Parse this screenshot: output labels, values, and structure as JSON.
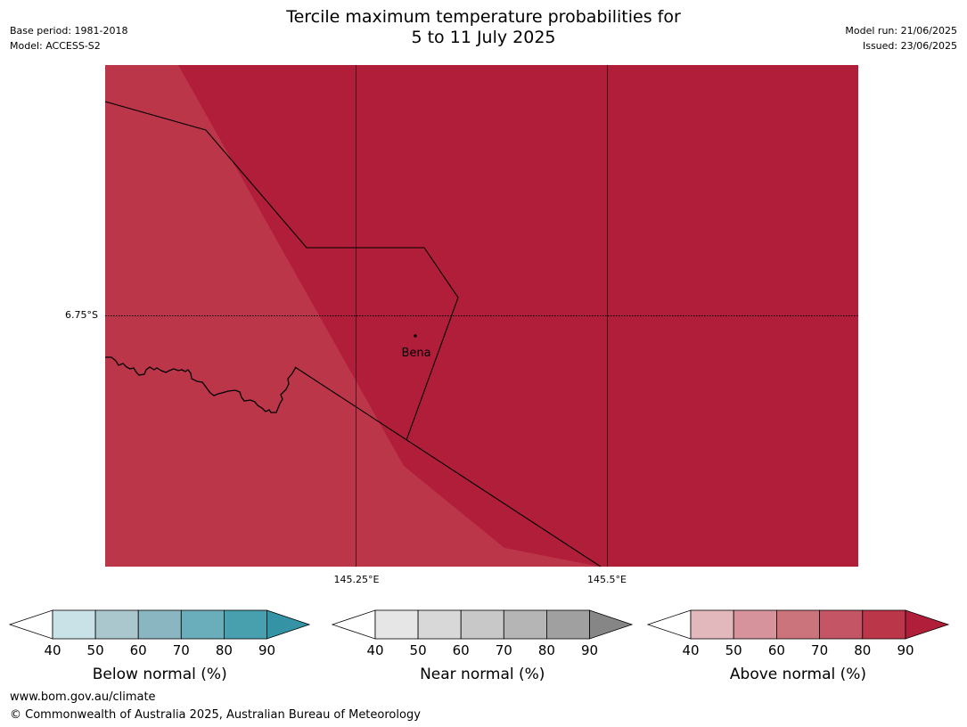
{
  "header": {
    "title_line1": "Tercile maximum temperature probabilities for",
    "title_line2": "5 to 11 July 2025",
    "base_period": "Base period: 1981-2018",
    "model": "Model: ACCESS-S2",
    "model_run": "Model run: 21/06/2025",
    "issued": "Issued: 23/06/2025"
  },
  "map": {
    "latitude_label": "6.75°S",
    "longitude_labels": [
      "145.25°E",
      "145.5°E"
    ],
    "place_label": "Bena",
    "colors": {
      "above_80_90": "#bc364a",
      "above_90_plus": "#b11e3a"
    }
  },
  "colorbars": [
    {
      "name": "below",
      "title": "Below normal (%)",
      "ticks": [
        "40",
        "50",
        "60",
        "70",
        "80",
        "90"
      ],
      "colors": [
        "#ffffff",
        "#c9e2e7",
        "#a9c7cc",
        "#8ab6c2",
        "#6aadbb",
        "#48a0ae",
        "#3494a6"
      ]
    },
    {
      "name": "near",
      "title": "Near normal (%)",
      "ticks": [
        "40",
        "50",
        "60",
        "70",
        "80",
        "90"
      ],
      "colors": [
        "#ffffff",
        "#e6e6e6",
        "#d8d8d8",
        "#c8c8c8",
        "#b5b5b5",
        "#a0a0a0",
        "#868686"
      ]
    },
    {
      "name": "above",
      "title": "Above normal (%)",
      "ticks": [
        "40",
        "50",
        "60",
        "70",
        "80",
        "90"
      ],
      "colors": [
        "#ffffff",
        "#e3b8bd",
        "#d6939b",
        "#cc747c",
        "#c45564",
        "#bc364a",
        "#b11e3a"
      ]
    }
  ],
  "footer": {
    "website": "www.bom.gov.au/climate",
    "copyright": "© Commonwealth of Australia 2025, Australian Bureau of Meteorology"
  }
}
